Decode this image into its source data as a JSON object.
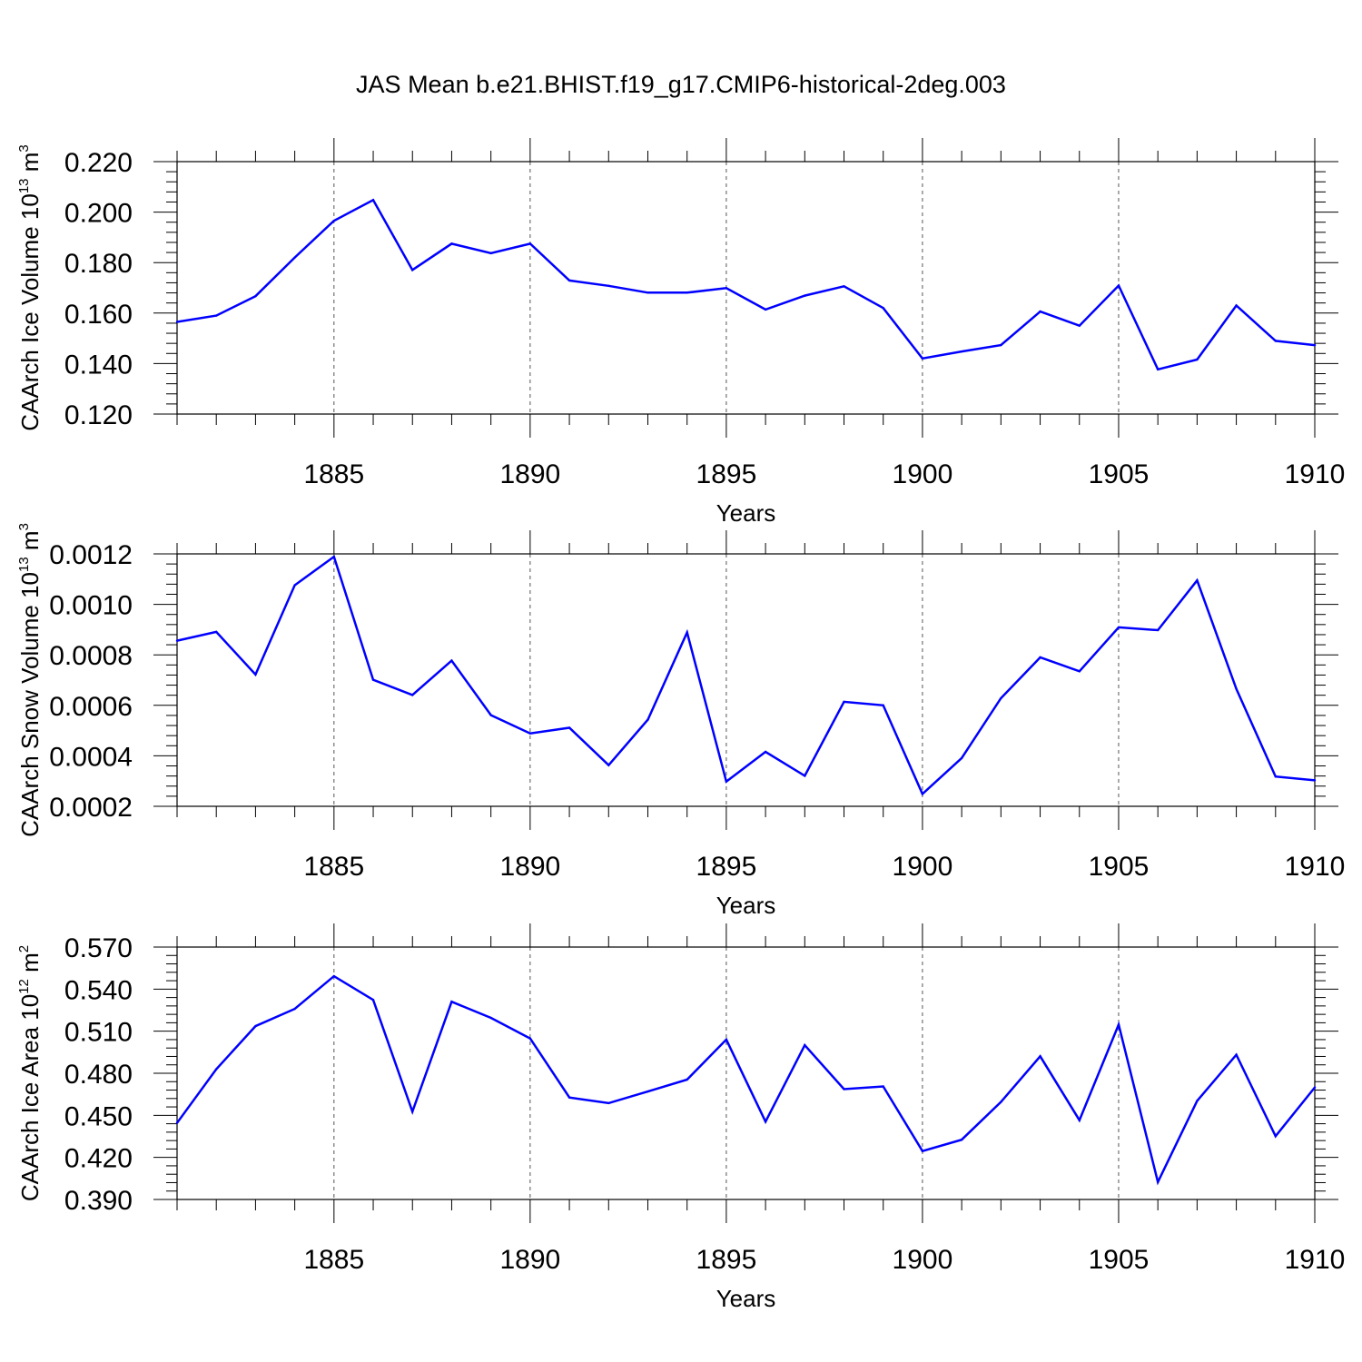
{
  "title": "JAS Mean b.e21.BHIST.f19_g17.CMIP6-historical-2deg.003",
  "colors": {
    "series": "#0000ff",
    "axis": "#000000",
    "grid": "#555555"
  },
  "chart_data": [
    {
      "type": "line",
      "ylabel": "CAArch Ice Volume 10",
      "ylabel_exp": "13",
      "ylabel_unit": "m",
      "ylabel_unit_exp": "3",
      "xlabel": "Years",
      "xlim": [
        1881,
        1910
      ],
      "ylim": [
        0.12,
        0.22
      ],
      "yticks": [
        "0.120",
        "0.140",
        "0.160",
        "0.180",
        "0.200",
        "0.220"
      ],
      "yticks_values": [
        0.12,
        0.14,
        0.16,
        0.18,
        0.2,
        0.22
      ],
      "xticks": [
        "1885",
        "1890",
        "1895",
        "1900",
        "1905",
        "1910"
      ],
      "xticks_values": [
        1885,
        1890,
        1895,
        1900,
        1905,
        1910
      ],
      "x": [
        1881,
        1882,
        1883,
        1884,
        1885,
        1886,
        1887,
        1888,
        1889,
        1890,
        1891,
        1892,
        1893,
        1894,
        1895,
        1896,
        1897,
        1898,
        1899,
        1900,
        1901,
        1902,
        1903,
        1904,
        1905,
        1906,
        1907,
        1908,
        1909,
        1910
      ],
      "values": [
        0.1565,
        0.159,
        0.1667,
        0.182,
        0.1966,
        0.2048,
        0.1771,
        0.1875,
        0.1837,
        0.1875,
        0.1729,
        0.1708,
        0.1681,
        0.1681,
        0.1699,
        0.1614,
        0.1669,
        0.1706,
        0.162,
        0.142,
        0.1448,
        0.1473,
        0.1606,
        0.155,
        0.1709,
        0.1377,
        0.1416,
        0.163,
        0.149,
        0.1473
      ]
    },
    {
      "type": "line",
      "ylabel": "CAArch Snow Volume 10",
      "ylabel_exp": "13",
      "ylabel_unit": "m",
      "ylabel_unit_exp": "3",
      "xlabel": "Years",
      "xlim": [
        1881,
        1910
      ],
      "ylim": [
        0.0002,
        0.0012
      ],
      "yticks": [
        "0.0002",
        "0.0004",
        "0.0006",
        "0.0008",
        "0.0010",
        "0.0012"
      ],
      "yticks_values": [
        0.0002,
        0.0004,
        0.0006,
        0.0008,
        0.001,
        0.0012
      ],
      "xticks": [
        "1885",
        "1890",
        "1895",
        "1900",
        "1905",
        "1910"
      ],
      "xticks_values": [
        1885,
        1890,
        1895,
        1900,
        1905,
        1910
      ],
      "x": [
        1881,
        1882,
        1883,
        1884,
        1885,
        1886,
        1887,
        1888,
        1889,
        1890,
        1891,
        1892,
        1893,
        1894,
        1895,
        1896,
        1897,
        1898,
        1899,
        1900,
        1901,
        1902,
        1903,
        1904,
        1905,
        1906,
        1907,
        1908,
        1909,
        1910
      ],
      "values": [
        0.000856,
        0.000891,
        0.000722,
        0.001076,
        0.001189,
        0.000701,
        0.000641,
        0.000777,
        0.000561,
        0.000489,
        0.000511,
        0.000363,
        0.000543,
        0.000889,
        0.000298,
        0.000416,
        0.000321,
        0.000614,
        0.0006,
        0.000249,
        0.000391,
        0.000628,
        0.00079,
        0.000735,
        0.000909,
        0.000898,
        0.001095,
        0.000665,
        0.000318,
        0.000303
      ]
    },
    {
      "type": "line",
      "ylabel": "CAArch Ice Area 10",
      "ylabel_exp": "12",
      "ylabel_unit": "m",
      "ylabel_unit_exp": "2",
      "xlabel": "Years",
      "xlim": [
        1881,
        1910
      ],
      "ylim": [
        0.39,
        0.57
      ],
      "yticks": [
        "0.390",
        "0.420",
        "0.450",
        "0.480",
        "0.510",
        "0.540",
        "0.570"
      ],
      "yticks_values": [
        0.39,
        0.42,
        0.45,
        0.48,
        0.51,
        0.54,
        0.57
      ],
      "xticks": [
        "1885",
        "1890",
        "1895",
        "1900",
        "1905",
        "1910"
      ],
      "xticks_values": [
        1885,
        1890,
        1895,
        1900,
        1905,
        1910
      ],
      "x": [
        1881,
        1882,
        1883,
        1884,
        1885,
        1886,
        1887,
        1888,
        1889,
        1890,
        1891,
        1892,
        1893,
        1894,
        1895,
        1896,
        1897,
        1898,
        1899,
        1900,
        1901,
        1902,
        1903,
        1904,
        1905,
        1906,
        1907,
        1908,
        1909,
        1910
      ],
      "values": [
        0.4446,
        0.4829,
        0.5136,
        0.5259,
        0.5492,
        0.5323,
        0.4526,
        0.531,
        0.5195,
        0.5048,
        0.4627,
        0.4587,
        0.467,
        0.4755,
        0.504,
        0.4455,
        0.5,
        0.4687,
        0.4706,
        0.4245,
        0.4326,
        0.4595,
        0.4921,
        0.4465,
        0.5147,
        0.4024,
        0.4603,
        0.4932,
        0.4351,
        0.4699
      ]
    }
  ]
}
